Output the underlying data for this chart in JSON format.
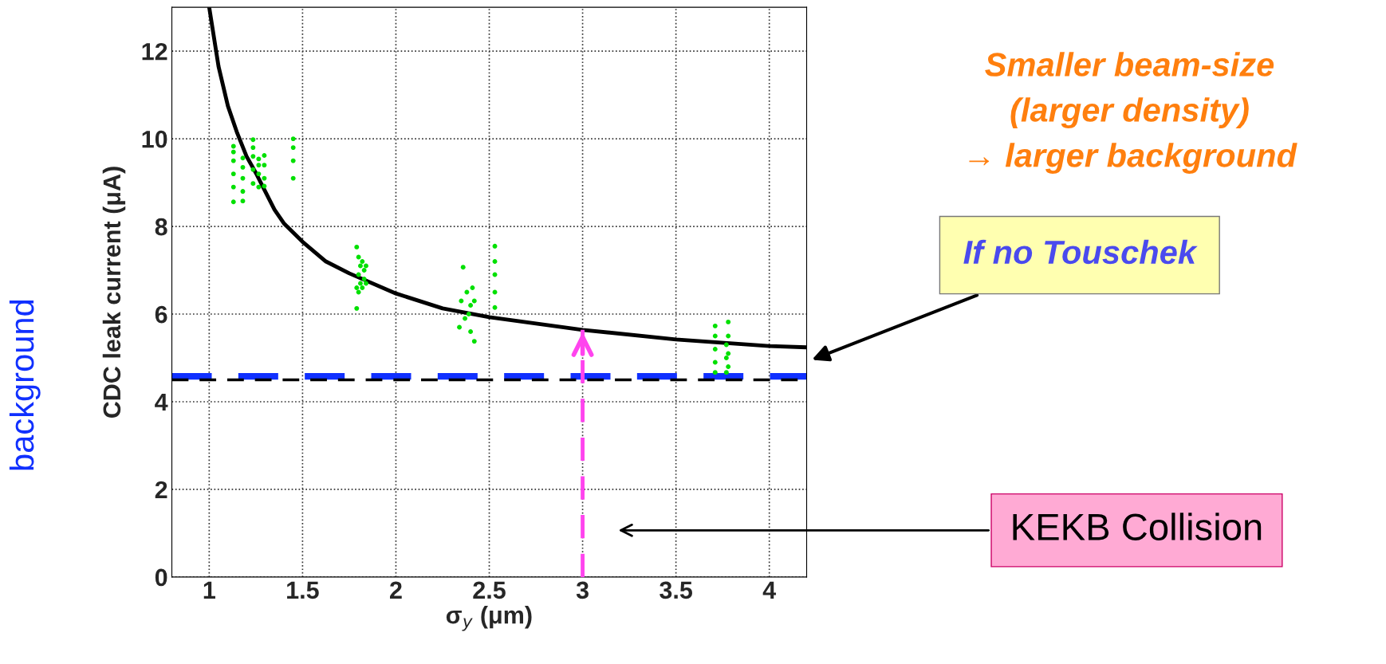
{
  "chart_data": {
    "type": "line",
    "xlabel": "σ$_{y}$ (μm)",
    "ylabel": "CDC leak current (μA)",
    "xlim": [
      0.8,
      4.2
    ],
    "xticks": [
      1,
      1.5,
      2,
      2.5,
      3,
      3.5,
      4
    ],
    "ylim": [
      0,
      13
    ],
    "yticks": [
      0,
      2,
      4,
      6,
      8,
      10,
      12
    ],
    "grid": true,
    "legend": false,
    "series": [
      {
        "color": "#000000",
        "marker": "none",
        "line_style": "solid",
        "x": [
          1.0,
          1.05,
          1.1,
          1.15,
          1.2,
          1.25,
          1.3,
          1.35,
          1.4,
          1.5,
          1.625,
          1.75,
          2.0,
          2.25,
          2.5,
          3.0,
          3.5,
          4.0,
          4.2
        ],
        "values": [
          13.0,
          11.65,
          10.75,
          10.13,
          9.6,
          9.22,
          8.8,
          8.38,
          8.07,
          7.65,
          7.2,
          6.93,
          6.47,
          6.13,
          5.93,
          5.64,
          5.42,
          5.27,
          5.24
        ]
      },
      {
        "color": "#ff44ee",
        "marker": "none",
        "line_style": "dashed",
        "x": [
          3,
          3
        ],
        "values": [
          0,
          5.64
        ]
      },
      {
        "type": "scatter",
        "color": "#00e000",
        "marker": "circle",
        "x": [
          1.13,
          1.13,
          1.13,
          1.13,
          1.13,
          1.13,
          1.18,
          1.18,
          1.18,
          1.18,
          1.18,
          1.235,
          1.235,
          1.235,
          1.235,
          1.235,
          1.265,
          1.265,
          1.265,
          1.265,
          1.295,
          1.295,
          1.295,
          1.295,
          1.45,
          1.45,
          1.45,
          1.45,
          1.79,
          1.79,
          1.79,
          1.8,
          1.8,
          1.8,
          1.81,
          1.81,
          1.82,
          1.82,
          1.83,
          1.83,
          1.84,
          1.84,
          2.34,
          2.35,
          2.36,
          2.37,
          2.38,
          2.39,
          2.4,
          2.4,
          2.41,
          2.42,
          2.42,
          2.53,
          2.53,
          2.53,
          2.53,
          2.53,
          3.71,
          3.71,
          3.71,
          3.71,
          3.71,
          3.77,
          3.77,
          3.77,
          3.78,
          3.78,
          3.78,
          3.78
        ],
        "values": [
          8.56,
          8.9,
          9.2,
          9.5,
          9.7,
          9.83,
          8.58,
          8.8,
          9.1,
          9.35,
          9.56,
          8.98,
          9.3,
          9.6,
          9.8,
          9.98,
          8.9,
          9.2,
          9.4,
          9.54,
          8.92,
          9.1,
          9.4,
          9.62,
          9.1,
          9.5,
          9.8,
          10.0,
          6.13,
          6.6,
          7.53,
          6.5,
          6.9,
          7.3,
          6.7,
          7.1,
          6.6,
          7.2,
          6.8,
          7.0,
          6.7,
          7.1,
          5.7,
          6.3,
          7.07,
          5.9,
          6.5,
          6.0,
          5.6,
          6.2,
          6.6,
          5.38,
          6.3,
          6.15,
          6.5,
          6.9,
          7.2,
          7.55,
          4.67,
          4.9,
          5.2,
          5.5,
          5.73,
          4.67,
          5.0,
          5.3,
          4.8,
          5.1,
          5.5,
          5.82
        ]
      }
    ],
    "ref_lines": [
      {
        "axis": "y",
        "value": 4.58,
        "label": "background",
        "color": "#1030ff",
        "line_style": "dashed"
      },
      {
        "axis": "y",
        "value": 4.5,
        "color": "#000000",
        "line_style": "dashed"
      }
    ],
    "annotations": [
      "Smaller beam-size\n(larger density)\n→ larger background",
      "If no Touschek",
      "KEKB Collision"
    ]
  }
}
